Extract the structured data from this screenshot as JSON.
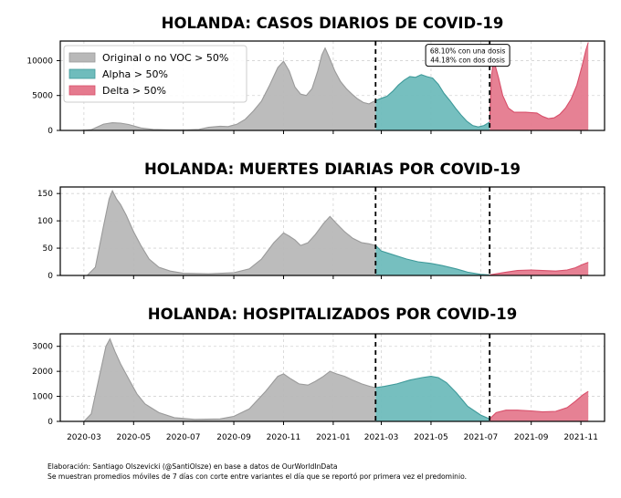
{
  "colors": {
    "original": "#b8b8b8",
    "original_edge": "#9a9a9a",
    "alpha": "#6fbcbc",
    "alpha_edge": "#3f9a9a",
    "delta": "#e57a8e",
    "delta_edge": "#d84f6a"
  },
  "footer": {
    "line1": "Elaboración: Santiago Olszevicki (@SantiOlsze) en base a datos de OurWorldInData",
    "line2": "Se muestran promedios móviles de 7 días con corte entre variantes el día que se reportó por primera vez el predominio."
  },
  "chart_data": [
    {
      "type": "area",
      "title": "HOLANDA: CASOS DIARIOS DE COVID-19",
      "xlabel": "",
      "ylabel": "",
      "x_range": [
        "2020-02-01",
        "2021-11-30"
      ],
      "ylim": [
        0,
        12800
      ],
      "yticks": [
        0,
        5000,
        10000
      ],
      "grid": true,
      "legend": {
        "placement": "top-left",
        "entries": [
          {
            "label": "Original o no VOC > 50%",
            "series": "original"
          },
          {
            "label": "Alpha > 50%",
            "series": "alpha"
          },
          {
            "label": "Delta > 50%",
            "series": "delta"
          }
        ]
      },
      "annotation": {
        "lines": [
          "68.10% con una dosis",
          "44.18% con dos dosis"
        ],
        "x": "2021-06-15",
        "y": 10500
      },
      "vlines": [
        "2021-02-22",
        "2021-07-12"
      ],
      "series": [
        {
          "key": "original",
          "points": [
            [
              "2020-02-27",
              0
            ],
            [
              "2020-03-10",
              100
            ],
            [
              "2020-03-25",
              900
            ],
            [
              "2020-04-05",
              1100
            ],
            [
              "2020-04-15",
              1050
            ],
            [
              "2020-04-25",
              850
            ],
            [
              "2020-05-10",
              350
            ],
            [
              "2020-05-25",
              150
            ],
            [
              "2020-06-15",
              80
            ],
            [
              "2020-07-05",
              80
            ],
            [
              "2020-07-20",
              150
            ],
            [
              "2020-08-01",
              450
            ],
            [
              "2020-08-15",
              600
            ],
            [
              "2020-08-25",
              550
            ],
            [
              "2020-09-05",
              900
            ],
            [
              "2020-09-15",
              1600
            ],
            [
              "2020-09-25",
              2800
            ],
            [
              "2020-10-05",
              4200
            ],
            [
              "2020-10-15",
              6500
            ],
            [
              "2020-10-25",
              9000
            ],
            [
              "2020-11-01",
              9900
            ],
            [
              "2020-11-08",
              8500
            ],
            [
              "2020-11-15",
              6200
            ],
            [
              "2020-11-22",
              5200
            ],
            [
              "2020-11-29",
              5000
            ],
            [
              "2020-12-06",
              6000
            ],
            [
              "2020-12-13",
              8500
            ],
            [
              "2020-12-18",
              10800
            ],
            [
              "2020-12-22",
              11800
            ],
            [
              "2020-12-27",
              10500
            ],
            [
              "2021-01-03",
              8500
            ],
            [
              "2021-01-10",
              7000
            ],
            [
              "2021-01-17",
              6000
            ],
            [
              "2021-01-24",
              5200
            ],
            [
              "2021-01-31",
              4500
            ],
            [
              "2021-02-07",
              4000
            ],
            [
              "2021-02-14",
              3800
            ],
            [
              "2021-02-22",
              4300
            ]
          ]
        },
        {
          "key": "alpha",
          "points": [
            [
              "2021-02-22",
              4300
            ],
            [
              "2021-03-01",
              4600
            ],
            [
              "2021-03-08",
              4900
            ],
            [
              "2021-03-15",
              5600
            ],
            [
              "2021-03-22",
              6500
            ],
            [
              "2021-03-29",
              7200
            ],
            [
              "2021-04-05",
              7700
            ],
            [
              "2021-04-12",
              7600
            ],
            [
              "2021-04-19",
              8000
            ],
            [
              "2021-04-26",
              7700
            ],
            [
              "2021-05-03",
              7500
            ],
            [
              "2021-05-10",
              6600
            ],
            [
              "2021-05-17",
              5300
            ],
            [
              "2021-05-24",
              4300
            ],
            [
              "2021-05-31",
              3200
            ],
            [
              "2021-06-07",
              2200
            ],
            [
              "2021-06-14",
              1300
            ],
            [
              "2021-06-21",
              700
            ],
            [
              "2021-06-28",
              500
            ],
            [
              "2021-07-05",
              700
            ],
            [
              "2021-07-12",
              1200
            ]
          ]
        },
        {
          "key": "delta",
          "points": [
            [
              "2021-07-12",
              1200
            ],
            [
              "2021-07-14",
              7500
            ],
            [
              "2021-07-16",
              9500
            ],
            [
              "2021-07-19",
              9200
            ],
            [
              "2021-07-23",
              7500
            ],
            [
              "2021-07-28",
              5000
            ],
            [
              "2021-08-04",
              3200
            ],
            [
              "2021-08-11",
              2600
            ],
            [
              "2021-08-25",
              2600
            ],
            [
              "2021-09-08",
              2500
            ],
            [
              "2021-09-15",
              2000
            ],
            [
              "2021-09-22",
              1700
            ],
            [
              "2021-09-29",
              1800
            ],
            [
              "2021-10-06",
              2300
            ],
            [
              "2021-10-13",
              3200
            ],
            [
              "2021-10-20",
              4500
            ],
            [
              "2021-10-27",
              6500
            ],
            [
              "2021-11-03",
              9500
            ],
            [
              "2021-11-07",
              11500
            ],
            [
              "2021-11-10",
              12600
            ]
          ]
        }
      ]
    },
    {
      "type": "area",
      "title": "HOLANDA: MUERTES DIARIAS POR COVID-19",
      "xlabel": "",
      "ylabel": "",
      "x_range": [
        "2020-02-01",
        "2021-11-30"
      ],
      "ylim": [
        0,
        162
      ],
      "yticks": [
        0,
        50,
        100,
        150
      ],
      "grid": true,
      "vlines": [
        "2021-02-22",
        "2021-07-12"
      ],
      "series": [
        {
          "key": "original",
          "points": [
            [
              "2020-03-05",
              0
            ],
            [
              "2020-03-15",
              15
            ],
            [
              "2020-03-25",
              90
            ],
            [
              "2020-04-01",
              140
            ],
            [
              "2020-04-05",
              155
            ],
            [
              "2020-04-10",
              140
            ],
            [
              "2020-04-15",
              130
            ],
            [
              "2020-04-22",
              110
            ],
            [
              "2020-05-01",
              80
            ],
            [
              "2020-05-10",
              55
            ],
            [
              "2020-05-20",
              30
            ],
            [
              "2020-06-01",
              15
            ],
            [
              "2020-06-15",
              8
            ],
            [
              "2020-07-01",
              4
            ],
            [
              "2020-08-01",
              3
            ],
            [
              "2020-09-01",
              5
            ],
            [
              "2020-09-20",
              12
            ],
            [
              "2020-10-05",
              30
            ],
            [
              "2020-10-20",
              60
            ],
            [
              "2020-11-01",
              78
            ],
            [
              "2020-11-08",
              72
            ],
            [
              "2020-11-15",
              65
            ],
            [
              "2020-11-22",
              55
            ],
            [
              "2020-12-01",
              60
            ],
            [
              "2020-12-10",
              75
            ],
            [
              "2020-12-20",
              95
            ],
            [
              "2020-12-28",
              108
            ],
            [
              "2021-01-05",
              95
            ],
            [
              "2021-01-15",
              80
            ],
            [
              "2021-01-25",
              68
            ],
            [
              "2021-02-05",
              60
            ],
            [
              "2021-02-14",
              58
            ],
            [
              "2021-02-22",
              55
            ]
          ]
        },
        {
          "key": "alpha",
          "points": [
            [
              "2021-02-22",
              55
            ],
            [
              "2021-03-01",
              45
            ],
            [
              "2021-03-15",
              38
            ],
            [
              "2021-04-01",
              30
            ],
            [
              "2021-04-15",
              25
            ],
            [
              "2021-05-01",
              22
            ],
            [
              "2021-05-15",
              18
            ],
            [
              "2021-06-01",
              12
            ],
            [
              "2021-06-15",
              6
            ],
            [
              "2021-07-01",
              2
            ],
            [
              "2021-07-12",
              1
            ]
          ]
        },
        {
          "key": "delta",
          "points": [
            [
              "2021-07-12",
              1
            ],
            [
              "2021-07-20",
              3
            ],
            [
              "2021-08-01",
              6
            ],
            [
              "2021-08-15",
              9
            ],
            [
              "2021-09-01",
              10
            ],
            [
              "2021-09-15",
              9
            ],
            [
              "2021-10-01",
              8
            ],
            [
              "2021-10-15",
              10
            ],
            [
              "2021-10-25",
              14
            ],
            [
              "2021-11-03",
              20
            ],
            [
              "2021-11-10",
              24
            ]
          ]
        }
      ]
    },
    {
      "type": "area",
      "title": "HOLANDA: HOSPITALIZADOS POR COVID-19",
      "xlabel": "",
      "ylabel": "",
      "x_range": [
        "2020-02-01",
        "2021-11-30"
      ],
      "ylim": [
        0,
        3500
      ],
      "yticks": [
        0,
        1000,
        2000,
        3000
      ],
      "grid": true,
      "xticks": [
        "2020-03",
        "2020-05",
        "2020-07",
        "2020-09",
        "2020-11",
        "2021-01",
        "2021-03",
        "2021-05",
        "2021-07",
        "2021-09",
        "2021-11"
      ],
      "vlines": [
        "2021-02-22",
        "2021-07-12"
      ],
      "series": [
        {
          "key": "original",
          "points": [
            [
              "2020-03-01",
              0
            ],
            [
              "2020-03-10",
              300
            ],
            [
              "2020-03-20",
              1800
            ],
            [
              "2020-03-28",
              3000
            ],
            [
              "2020-04-02",
              3300
            ],
            [
              "2020-04-08",
              2800
            ],
            [
              "2020-04-15",
              2300
            ],
            [
              "2020-04-25",
              1700
            ],
            [
              "2020-05-05",
              1100
            ],
            [
              "2020-05-15",
              700
            ],
            [
              "2020-06-01",
              350
            ],
            [
              "2020-06-20",
              150
            ],
            [
              "2020-07-15",
              80
            ],
            [
              "2020-08-15",
              100
            ],
            [
              "2020-09-01",
              200
            ],
            [
              "2020-09-20",
              500
            ],
            [
              "2020-10-10",
              1200
            ],
            [
              "2020-10-25",
              1800
            ],
            [
              "2020-11-01",
              1900
            ],
            [
              "2020-11-10",
              1700
            ],
            [
              "2020-11-20",
              1500
            ],
            [
              "2020-12-01",
              1450
            ],
            [
              "2020-12-10",
              1600
            ],
            [
              "2020-12-20",
              1800
            ],
            [
              "2020-12-28",
              2000
            ],
            [
              "2021-01-05",
              1900
            ],
            [
              "2021-01-15",
              1800
            ],
            [
              "2021-01-25",
              1650
            ],
            [
              "2021-02-05",
              1500
            ],
            [
              "2021-02-15",
              1400
            ],
            [
              "2021-02-22",
              1350
            ]
          ]
        },
        {
          "key": "alpha",
          "points": [
            [
              "2021-02-22",
              1350
            ],
            [
              "2021-03-05",
              1400
            ],
            [
              "2021-03-20",
              1500
            ],
            [
              "2021-04-05",
              1650
            ],
            [
              "2021-04-20",
              1750
            ],
            [
              "2021-05-01",
              1800
            ],
            [
              "2021-05-10",
              1750
            ],
            [
              "2021-05-20",
              1550
            ],
            [
              "2021-06-01",
              1150
            ],
            [
              "2021-06-15",
              600
            ],
            [
              "2021-07-01",
              250
            ],
            [
              "2021-07-12",
              100
            ]
          ]
        },
        {
          "key": "delta",
          "points": [
            [
              "2021-07-12",
              100
            ],
            [
              "2021-07-20",
              350
            ],
            [
              "2021-08-01",
              450
            ],
            [
              "2021-08-15",
              450
            ],
            [
              "2021-09-01",
              420
            ],
            [
              "2021-09-15",
              380
            ],
            [
              "2021-10-01",
              400
            ],
            [
              "2021-10-15",
              550
            ],
            [
              "2021-10-25",
              800
            ],
            [
              "2021-11-03",
              1050
            ],
            [
              "2021-11-10",
              1200
            ]
          ]
        }
      ]
    }
  ]
}
